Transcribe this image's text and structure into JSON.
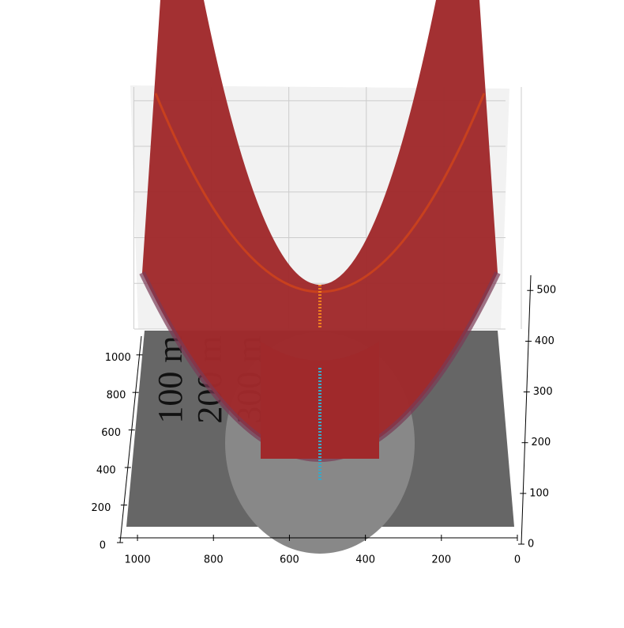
{
  "chart_data": {
    "type": "surface3d",
    "surface_color": "#a0292b",
    "ground_annotations": [
      "100 m",
      "200 m",
      "300 m"
    ],
    "xlim": [
      0,
      1050
    ],
    "xticks": [
      1000,
      800,
      600,
      400,
      200,
      0
    ],
    "ylim": [
      0,
      1100
    ],
    "yticks": [
      0,
      200,
      400,
      600,
      800,
      1000
    ],
    "zlim": [
      0,
      530
    ],
    "zticks": [
      0,
      100,
      200,
      300,
      400,
      500
    ],
    "grid": true
  }
}
